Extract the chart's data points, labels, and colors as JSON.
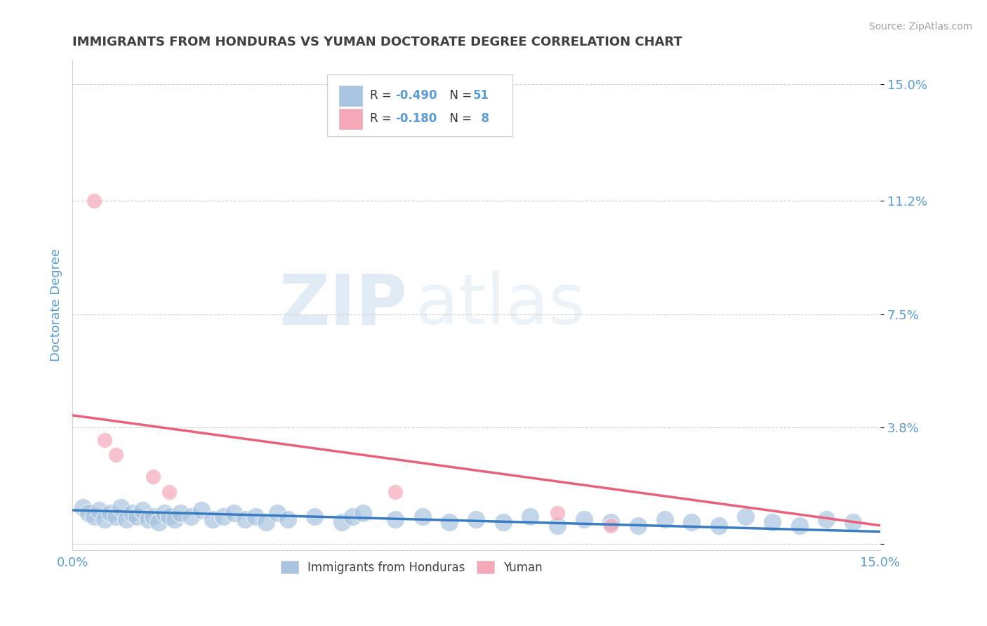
{
  "title": "IMMIGRANTS FROM HONDURAS VS YUMAN DOCTORATE DEGREE CORRELATION CHART",
  "source": "Source: ZipAtlas.com",
  "ylabel": "Doctorate Degree",
  "y_ticks": [
    0.0,
    0.038,
    0.075,
    0.112,
    0.15
  ],
  "y_tick_labels": [
    "",
    "3.8%",
    "7.5%",
    "11.2%",
    "15.0%"
  ],
  "xlim": [
    0.0,
    0.15
  ],
  "ylim": [
    -0.002,
    0.158
  ],
  "legend_label1": "Immigrants from Honduras",
  "legend_label2": "Yuman",
  "blue_color": "#a8c4e0",
  "pink_color": "#f4a8b8",
  "blue_line_color": "#3a7cc1",
  "pink_line_color": "#e8607a",
  "title_color": "#404040",
  "axis_label_color": "#5b9bd5",
  "tick_label_color": "#5b9bd5",
  "source_color": "#a0a0a0",
  "blue_scatter": [
    [
      0.002,
      0.012
    ],
    [
      0.003,
      0.01
    ],
    [
      0.004,
      0.009
    ],
    [
      0.005,
      0.011
    ],
    [
      0.006,
      0.008
    ],
    [
      0.007,
      0.01
    ],
    [
      0.008,
      0.009
    ],
    [
      0.009,
      0.012
    ],
    [
      0.01,
      0.008
    ],
    [
      0.011,
      0.01
    ],
    [
      0.012,
      0.009
    ],
    [
      0.013,
      0.011
    ],
    [
      0.014,
      0.008
    ],
    [
      0.015,
      0.009
    ],
    [
      0.016,
      0.007
    ],
    [
      0.017,
      0.01
    ],
    [
      0.018,
      0.009
    ],
    [
      0.019,
      0.008
    ],
    [
      0.02,
      0.01
    ],
    [
      0.022,
      0.009
    ],
    [
      0.024,
      0.011
    ],
    [
      0.026,
      0.008
    ],
    [
      0.028,
      0.009
    ],
    [
      0.03,
      0.01
    ],
    [
      0.032,
      0.008
    ],
    [
      0.034,
      0.009
    ],
    [
      0.036,
      0.007
    ],
    [
      0.038,
      0.01
    ],
    [
      0.04,
      0.008
    ],
    [
      0.045,
      0.009
    ],
    [
      0.05,
      0.007
    ],
    [
      0.052,
      0.009
    ],
    [
      0.054,
      0.01
    ],
    [
      0.06,
      0.008
    ],
    [
      0.065,
      0.009
    ],
    [
      0.07,
      0.007
    ],
    [
      0.075,
      0.008
    ],
    [
      0.08,
      0.007
    ],
    [
      0.085,
      0.009
    ],
    [
      0.09,
      0.006
    ],
    [
      0.095,
      0.008
    ],
    [
      0.1,
      0.007
    ],
    [
      0.105,
      0.006
    ],
    [
      0.11,
      0.008
    ],
    [
      0.115,
      0.007
    ],
    [
      0.12,
      0.006
    ],
    [
      0.125,
      0.009
    ],
    [
      0.13,
      0.007
    ],
    [
      0.135,
      0.006
    ],
    [
      0.14,
      0.008
    ],
    [
      0.145,
      0.007
    ]
  ],
  "pink_scatter": [
    [
      0.004,
      0.112
    ],
    [
      0.006,
      0.034
    ],
    [
      0.008,
      0.029
    ],
    [
      0.015,
      0.022
    ],
    [
      0.018,
      0.017
    ],
    [
      0.06,
      0.017
    ],
    [
      0.09,
      0.01
    ],
    [
      0.1,
      0.006
    ]
  ],
  "blue_trendline_x": [
    0.0,
    0.15
  ],
  "blue_trendline_y": [
    0.011,
    0.004
  ],
  "pink_trendline_x": [
    0.0,
    0.15
  ],
  "pink_trendline_y": [
    0.042,
    0.006
  ]
}
